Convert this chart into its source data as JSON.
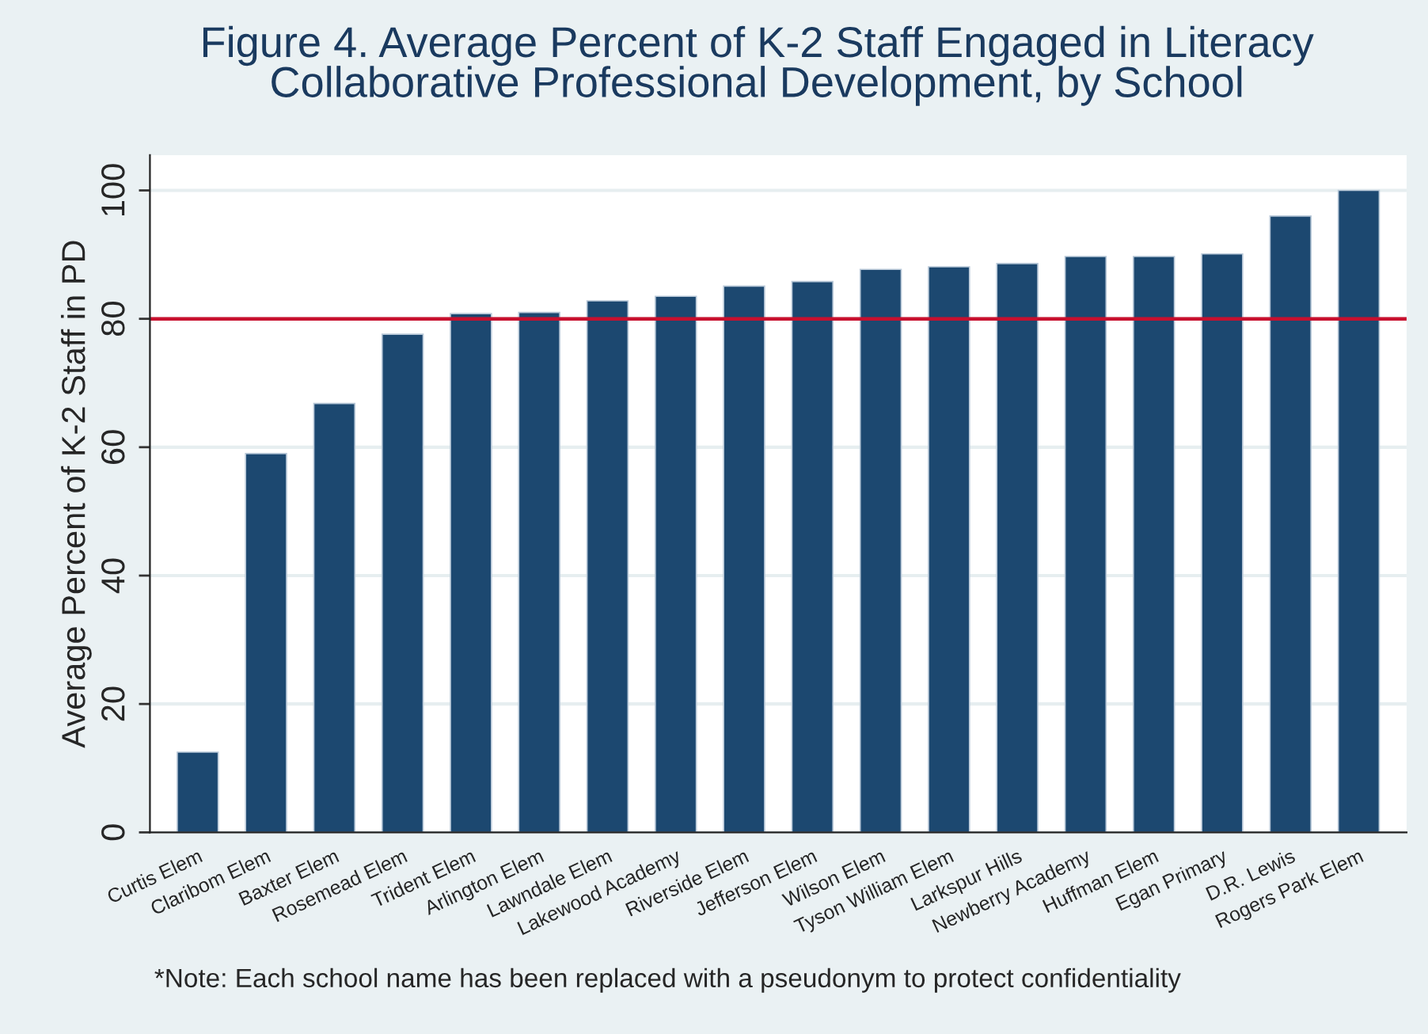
{
  "chart_data": {
    "type": "bar",
    "title": "Figure 4. Average Percent of K-2 Staff Engaged in Literacy\nCollaborative Professional Development, by School",
    "ylabel": "Average Percent of K-2 Staff in PD",
    "categories": [
      "Curtis Elem",
      "Claribom Elem",
      "Baxter Elem",
      "Rosemead Elem",
      "Trident Elem",
      "Arlington Elem",
      "Lawndale Elem",
      "Lakewood Academy",
      "Riverside Elem",
      "Jefferson Elem",
      "Wilson Elem",
      "Tyson William Elem",
      "Larkspur Hills",
      "Newberry Academy",
      "Huffman Elem",
      "Egan Primary",
      "D.R. Lewis",
      "Rogers Park Elem"
    ],
    "values": [
      12.5,
      59.0,
      66.8,
      77.6,
      80.8,
      81.0,
      82.8,
      83.5,
      85.1,
      85.8,
      87.7,
      88.1,
      88.6,
      89.7,
      89.7,
      90.1,
      96.0,
      100
    ],
    "color": "#1c4870",
    "ylim": [
      0,
      105.5
    ],
    "yticks": [
      0,
      20,
      40,
      60,
      80,
      100
    ],
    "grid": "y",
    "ref_lines": [
      {
        "axis": "y",
        "value": 80,
        "color": "#c8102e",
        "line_style": "solid"
      }
    ],
    "annotations": [
      "*Note: Each school name has been replaced with a pseudonym to protect confidentiality"
    ]
  }
}
